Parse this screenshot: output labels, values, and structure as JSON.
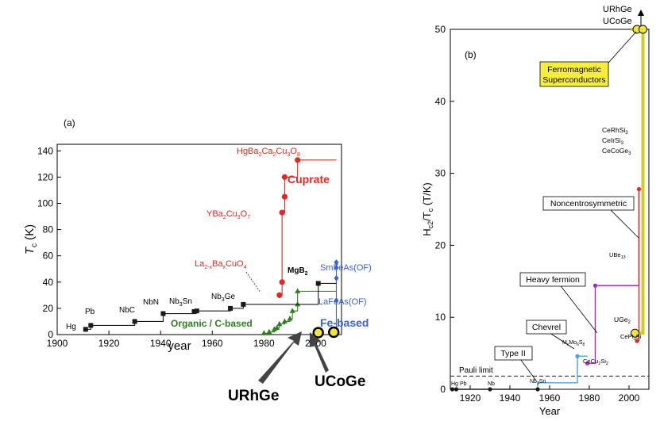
{
  "chart_data": [
    {
      "panel_label": "(a)",
      "type": "line",
      "xlabel": "year",
      "ylabel_main": "T",
      "ylabel_sub": "c",
      "ylabel_unit": " (K)",
      "xlim": [
        1900,
        2010
      ],
      "ylim": [
        0,
        145
      ],
      "xticks": [
        1900,
        1920,
        1940,
        1960,
        1980,
        2000
      ],
      "yticks": [
        0,
        20,
        40,
        60,
        80,
        100,
        120,
        140
      ],
      "series": [
        {
          "name": "Cuprate",
          "color": "#e8261f",
          "points": [
            [
              1986,
              30
            ],
            [
              1987,
              40
            ],
            [
              1987,
              93
            ],
            [
              1988,
              105
            ],
            [
              1988,
              120
            ],
            [
              1993,
              133
            ]
          ],
          "extend_to": 2008
        },
        {
          "name": "Organic / C-based",
          "color": "#2e7d1e",
          "points": [
            [
              1980,
              1
            ],
            [
              1982,
              2
            ],
            [
              1984,
              4
            ],
            [
              1985,
              5
            ],
            [
              1986,
              8
            ],
            [
              1988,
              10
            ],
            [
              1990,
              12
            ],
            [
              1991,
              18
            ],
            [
              1993,
              23
            ],
            [
              1993,
              33
            ]
          ],
          "extend_to": 2008
        },
        {
          "name": "Fe-based",
          "color": "#3b5fe0",
          "points": [
            [
              2008,
              4
            ],
            [
              2008,
              26
            ],
            [
              2008,
              43
            ],
            [
              2008,
              51
            ],
            [
              2008,
              55
            ]
          ]
        },
        {
          "name": "",
          "color": "#1a1a1a",
          "points": [
            [
              1911,
              4
            ],
            [
              1913,
              7
            ],
            [
              1930,
              10
            ],
            [
              1941,
              16
            ],
            [
              1953,
              17.5
            ],
            [
              1954,
              18
            ],
            [
              1967,
              20
            ],
            [
              1972,
              23
            ],
            [
              2001,
              39
            ]
          ],
          "extend_to": 2008
        }
      ],
      "annotations": [
        {
          "text": "Hg",
          "x": 1911,
          "y": 4
        },
        {
          "text": "Pb",
          "x": 1913,
          "y": 7
        },
        {
          "text": "NbC",
          "x": 1930,
          "y": 10
        },
        {
          "text": "NbN",
          "x": 1941,
          "y": 16
        },
        {
          "text": "Nb3Sn",
          "x": 1954,
          "y": 18
        },
        {
          "text": "Nb3Ge",
          "x": 1972,
          "y": 23
        },
        {
          "text": "MgB2",
          "x": 2001,
          "y": 39
        },
        {
          "text": "La2-xBaxCuO4",
          "x": 1986,
          "y": 30
        },
        {
          "text": "YBa2Cu3O7",
          "x": 1987,
          "y": 93
        },
        {
          "text": "HgBa2Ca2Cu3O8",
          "x": 1993,
          "y": 133
        },
        {
          "text": "SmFeAs(OF)",
          "x": 2008,
          "y": 55
        },
        {
          "text": "LaFeAs(OF)",
          "x": 2008,
          "y": 26
        },
        {
          "text": "URhGe",
          "x": 2001,
          "y": 0
        },
        {
          "text": "UCoGe",
          "x": 2007,
          "y": 0
        }
      ],
      "ferromagnetic_points": [
        {
          "name": "URhGe",
          "x": 2001,
          "y": 0.25
        },
        {
          "name": "UCoGe",
          "x": 2007,
          "y": 0.6
        }
      ],
      "labels": {
        "cuprate": "Cuprate",
        "organic": "Organic / C-based",
        "fe_based": "Fe-based",
        "urhge": "URhGe",
        "ucoge": "UCoGe",
        "hg": "Hg",
        "pb": "Pb",
        "nbc": "NbC",
        "nbn": "NbN",
        "nb3sn_a": "Nb",
        "nb3sn_b": "3",
        "nb3sn_c": "Sn",
        "nb3ge_a": "Nb",
        "nb3ge_b": "3",
        "nb3ge_c": "Ge",
        "mgb2_a": "MgB",
        "mgb2_b": "2",
        "la_a": "La",
        "la_b": "2-x",
        "la_c": "Ba",
        "la_d": "x",
        "la_e": "CuO",
        "la_f": "4",
        "y_a": "YBa",
        "y_b": "2",
        "y_c": "Cu",
        "y_d": "3",
        "y_e": "O",
        "y_f": "7",
        "hg_a": "HgBa",
        "hg_b": "2",
        "hg_c": "Ca",
        "hg_d": "2",
        "hg_e": "Cu",
        "hg_f": "3",
        "hg_g": "O",
        "hg_h": "8",
        "smfeas": "SmFeAs(OF)",
        "lafeas": "LaFeAs(OF)"
      }
    },
    {
      "panel_label": "(b)",
      "type": "line",
      "xlabel": "Year",
      "ylabel_main": "H",
      "ylabel_sub": "c2",
      "ylabel_rest": "/T",
      "ylabel_sub2": "c",
      "ylabel_unit": " (T/K)",
      "xlim": [
        1910,
        2010
      ],
      "ylim": [
        0,
        50
      ],
      "xticks": [
        1920,
        1940,
        1960,
        1980,
        2000
      ],
      "yticks": [
        0,
        10,
        20,
        30,
        40,
        50
      ],
      "pauli_limit": 1.84,
      "pauli_label": "Pauli limit",
      "series": [
        {
          "name": "",
          "color": "#1a1a1a",
          "points": [
            [
              1911,
              0
            ],
            [
              1913,
              0
            ],
            [
              1930,
              0
            ],
            [
              1954,
              0
            ]
          ]
        },
        {
          "name": "",
          "color": "#4aa3df",
          "points": [
            [
              1954,
              0
            ],
            [
              1954,
              0.9
            ],
            [
              1974,
              0.9
            ],
            [
              1974,
              4.6
            ],
            [
              1979,
              4.6
            ]
          ]
        },
        {
          "name": "",
          "color": "#9b30c8",
          "points": [
            [
              1979,
              3.6
            ],
            [
              1983,
              3.6
            ],
            [
              1983,
              14.4
            ],
            [
              2005,
              14.4
            ],
            [
              2005,
              27.8
            ]
          ]
        },
        {
          "name": "",
          "color": "#e8261f",
          "points": [
            [
              2005,
              6.7
            ],
            [
              2005,
              27.8
            ]
          ]
        },
        {
          "name": "",
          "color": "#d4cc24",
          "points": [
            [
              2003,
              7.8
            ],
            [
              2007,
              7.8
            ],
            [
              2007,
              50
            ],
            [
              2001,
              50
            ]
          ]
        }
      ],
      "markers": [
        {
          "label": "Hg",
          "x": 1911,
          "y": 0,
          "color": "#1a1a1a"
        },
        {
          "label": "Pb",
          "x": 1913,
          "y": 0,
          "color": "#1a1a1a"
        },
        {
          "label": "Nb",
          "x": 1930,
          "y": 0,
          "color": "#1a1a1a"
        },
        {
          "label": "Nb3Sn",
          "x": 1954,
          "y": 0,
          "color": "#1a1a1a"
        },
        {
          "label": "MxMo6S8",
          "x": 1974,
          "y": 4.6,
          "color": "#4aa3df"
        },
        {
          "label": "CeCu2Si2",
          "x": 1979,
          "y": 3.6,
          "color": "#9b30c8"
        },
        {
          "label": "UBe13",
          "x": 1983,
          "y": 14.4,
          "color": "#9b30c8"
        },
        {
          "label": "CeRhSi3",
          "x": 2005,
          "y": 27.8,
          "color": "#e8261f"
        },
        {
          "label": "CePt3Si",
          "x": 2004,
          "y": 6.7,
          "color": "#e8261f"
        },
        {
          "label": "UGe2",
          "x": 2003,
          "y": 7.8,
          "color": "#f2e43a"
        },
        {
          "label": "URhGe",
          "x": 2004,
          "y": 50,
          "color": "#f2e43a"
        },
        {
          "label": "UCoGe",
          "x": 2007,
          "y": 50,
          "color": "#f2e43a"
        }
      ],
      "boxes": [
        {
          "text": "Ferromagnetic Superconductors",
          "line1": "Ferromagnetic",
          "line2": "Superconductors"
        },
        {
          "text": "Noncentrosymmetric"
        },
        {
          "text": "Heavy fermion"
        },
        {
          "text": "Chevrel"
        },
        {
          "text": "Type II"
        }
      ],
      "labels": {
        "top_urhge": "URhGe",
        "top_ucoge": "UCoGe",
        "ferro_1": "Ferromagnetic",
        "ferro_2": "Superconductors",
        "noncentro": "Noncentrosymmetric",
        "heavy": "Heavy fermion",
        "chevrel": "Chevrel",
        "type2": "Type II",
        "cerhsi3_a": "CeRhSi",
        "cerhsi3_b": "3",
        "ceirsi3_a": "CeIrSi",
        "ceirsi3_b": "3",
        "cecoge3_a": "CeCoGe",
        "cecoge3_b": "3",
        "ube13_a": "UBe",
        "ube13_b": "13",
        "ugec_a": "UGe",
        "ugec_b": "2",
        "cept3si_a": "CePt",
        "cept3si_b": "3",
        "cept3si_c": "Si",
        "mo_a": "M",
        "mo_b": "x",
        "mo_c": "Mo",
        "mo_d": "6",
        "mo_e": "S",
        "mo_f": "8",
        "cecu_a": "CeCu",
        "cecu_b": "2",
        "cecu_c": "Si",
        "cecu_d": "2",
        "nb3sn_a": "Nb",
        "nb3sn_b": "3",
        "nb3sn_c": "Sn",
        "hg": "Hg",
        "pb": "Pb",
        "nb": "Nb"
      }
    }
  ]
}
